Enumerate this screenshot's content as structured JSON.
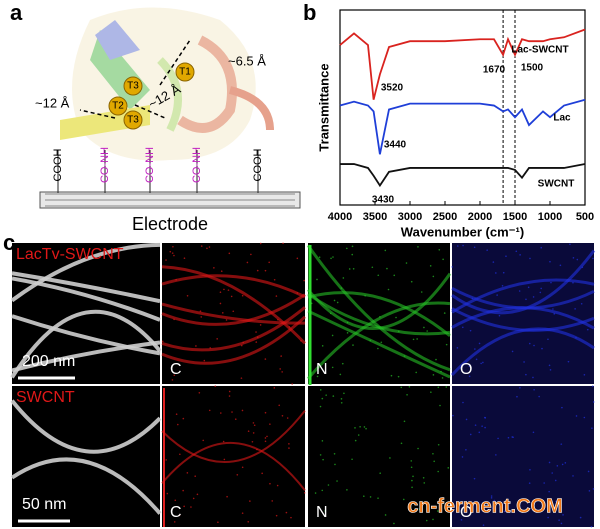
{
  "panel_a": {
    "label": "a",
    "sites": [
      "T1",
      "T2",
      "T3",
      "T3"
    ],
    "distances": [
      "~6.5 Å",
      "~12 Å",
      "~12 Å"
    ],
    "groups": [
      "COOH",
      "CO-NH",
      "CO-NH",
      "CO-NH",
      "COOH"
    ],
    "electrode": "Electrode"
  },
  "chart_data": {
    "type": "line",
    "label": "b",
    "xlabel": "Wavenumber (cm⁻¹)",
    "ylabel": "Transmittance",
    "x": [
      4000,
      3800,
      3600,
      3520,
      3430,
      3300,
      3000,
      2800,
      2500,
      2000,
      1800,
      1670,
      1600,
      1500,
      1400,
      1300,
      1100,
      1000,
      800,
      500
    ],
    "series": [
      {
        "name": "Lac-SWCNT",
        "color": "#d9231f",
        "values": [
          82,
          88,
          82,
          54,
          67,
          81,
          84,
          84,
          84,
          85,
          85,
          77,
          85,
          77,
          85,
          84,
          84,
          85,
          86,
          90
        ]
      },
      {
        "name": "Lac",
        "color": "#1f3fd8",
        "values": [
          51,
          53,
          51,
          48,
          26,
          49,
          52,
          52,
          52,
          52,
          51,
          48,
          49,
          45,
          49,
          41,
          48,
          45,
          51,
          54
        ]
      },
      {
        "name": "SWCNT",
        "color": "#111111",
        "values": [
          21,
          21,
          19,
          15,
          10,
          17,
          19,
          19,
          19,
          19,
          19,
          19,
          19,
          18,
          14,
          19,
          19,
          19,
          19,
          21
        ]
      }
    ],
    "xlim": [
      4000,
      500
    ],
    "ylim": [
      0,
      100
    ],
    "xticks": [
      4000,
      3500,
      3000,
      2500,
      2000,
      1500,
      1000,
      500
    ],
    "reference_lines": [
      1670,
      1500
    ],
    "annotations": [
      3520,
      1670,
      1500,
      3440,
      3430
    ]
  },
  "panel_c": {
    "label": "c",
    "rows": [
      {
        "sample": "LacTv-SWCNT",
        "scale": "200 nm",
        "elements": [
          "C",
          "N",
          "O"
        ]
      },
      {
        "sample": "SWCNT",
        "scale": "50 nm",
        "elements": [
          "C",
          "N",
          "O"
        ]
      }
    ],
    "watermark": "cn-ferment.COM"
  }
}
